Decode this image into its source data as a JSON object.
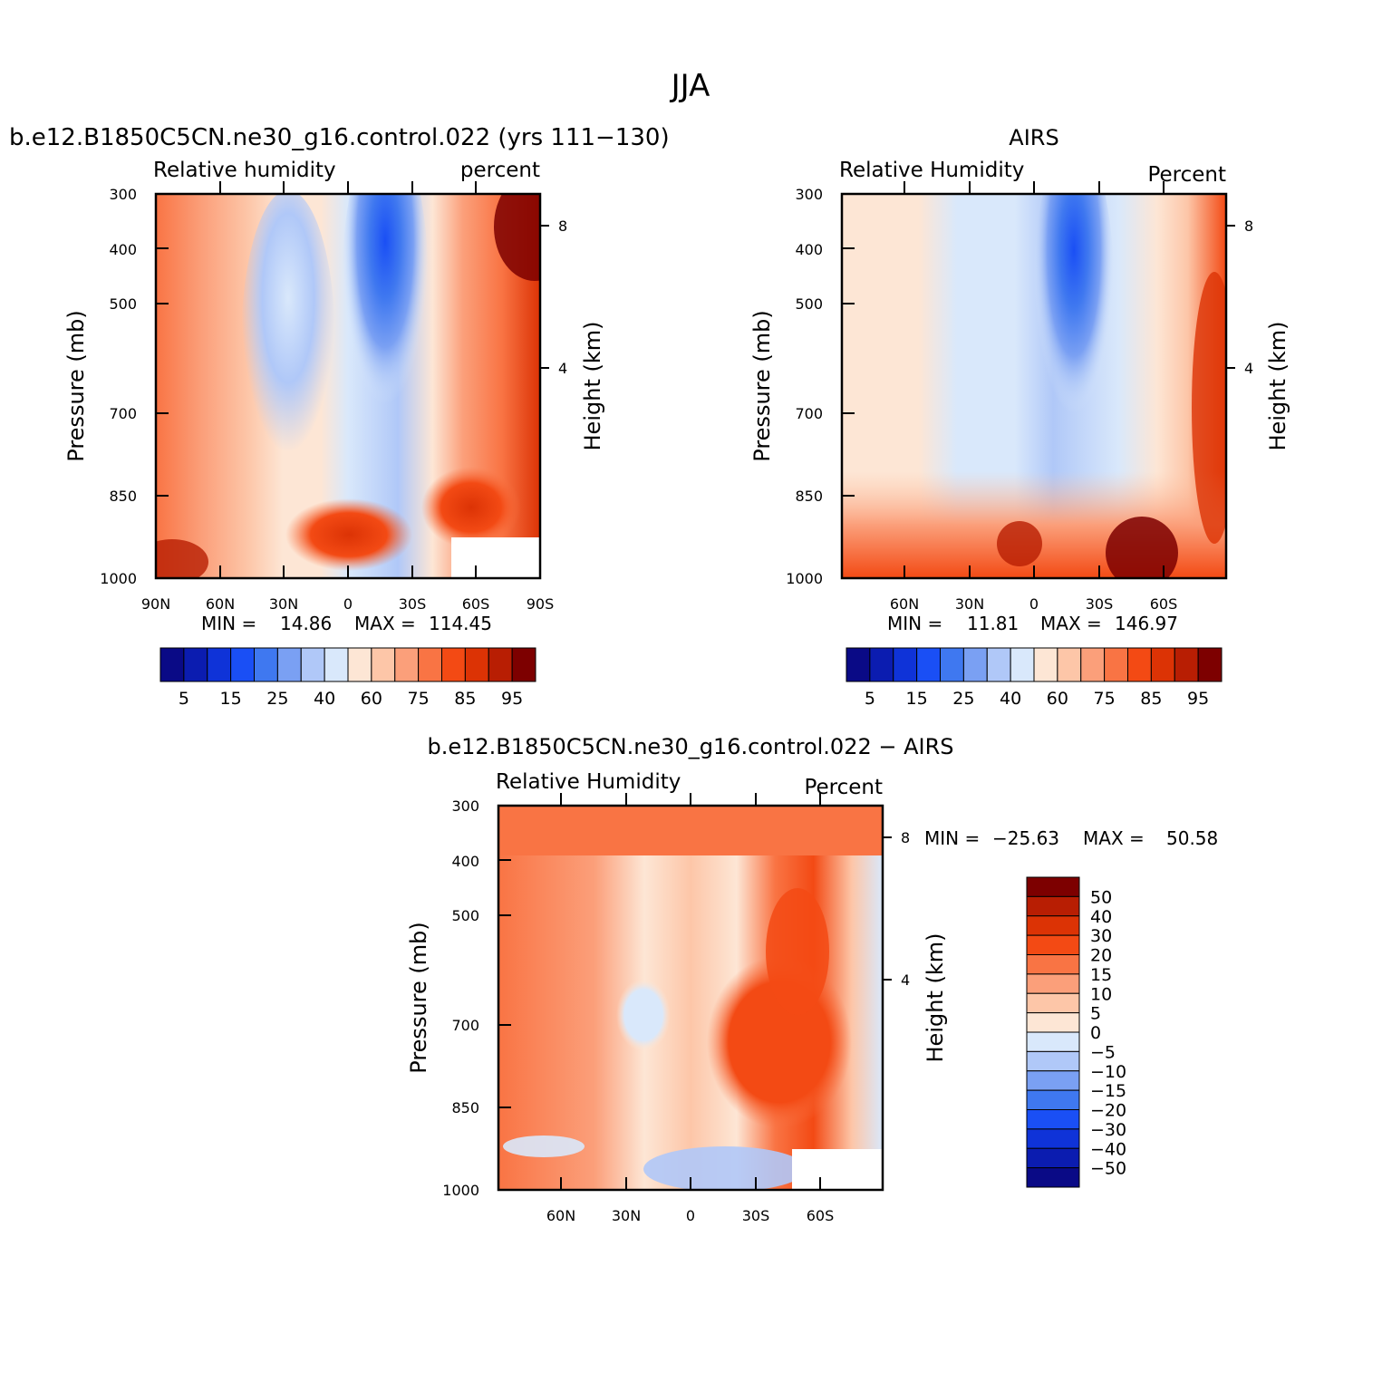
{
  "figure_title": "JJA",
  "chart_data": [
    {
      "type": "heatmap",
      "title": "b.e12.B1850C5CN.ne30_g16.control.022 (yrs 111−130)",
      "left_string": "Relative  humidity",
      "right_string": "percent",
      "ylabel": "Pressure  (mb)",
      "y2label": "Height  (km)",
      "xticks": [
        "90N",
        "60N",
        "30N",
        "0",
        "30S",
        "60S",
        "90S"
      ],
      "xlim": [
        90,
        -90
      ],
      "yticks": [
        "300",
        "400",
        "500",
        "700",
        "850",
        "1000"
      ],
      "ylim": [
        1000,
        300
      ],
      "y_scale": "log",
      "y2ticks": [
        "8",
        "4"
      ],
      "min_label": "MIN =",
      "min_value": "14.86",
      "max_label": "MAX =",
      "max_value": "114.45",
      "colorbar": {
        "orientation": "horizontal",
        "labels": [
          "5",
          "15",
          "25",
          "40",
          "60",
          "75",
          "85",
          "95"
        ],
        "colors": [
          "#0a0a86",
          "#0b1cb0",
          "#0f33d8",
          "#1a4ff5",
          "#3f78f0",
          "#7aa0f3",
          "#b0c8f8",
          "#d9e8fb",
          "#fde6d5",
          "#fdc6a8",
          "#fb9f7a",
          "#f97444",
          "#f34a14",
          "#dc3305",
          "#b81e03",
          "#7d0000"
        ]
      },
      "min_lat_data": 14.86,
      "max_data": 114.45
    },
    {
      "type": "heatmap",
      "title": "AIRS",
      "left_string": "Relative  Humidity",
      "right_string": "Percent",
      "ylabel": "Pressure  (mb)",
      "y2label": "Height  (km)",
      "xticks": [
        "60N",
        "30N",
        "0",
        "30S",
        "60S"
      ],
      "yticks": [
        "300",
        "400",
        "500",
        "700",
        "850",
        "1000"
      ],
      "y2ticks": [
        "8",
        "4"
      ],
      "min_label": "MIN =",
      "min_value": "11.81",
      "max_label": "MAX =",
      "max_value": "146.97",
      "colorbar": {
        "orientation": "horizontal",
        "labels": [
          "5",
          "15",
          "25",
          "40",
          "60",
          "75",
          "85",
          "95"
        ],
        "colors": [
          "#0a0a86",
          "#0b1cb0",
          "#0f33d8",
          "#1a4ff5",
          "#3f78f0",
          "#7aa0f3",
          "#b0c8f8",
          "#d9e8fb",
          "#fde6d5",
          "#fdc6a8",
          "#fb9f7a",
          "#f97444",
          "#f34a14",
          "#dc3305",
          "#b81e03",
          "#7d0000"
        ]
      }
    },
    {
      "type": "heatmap",
      "title": "b.e12.B1850C5CN.ne30_g16.control.022 − AIRS",
      "left_string": "Relative  Humidity",
      "right_string": "Percent",
      "ylabel": "Pressure  (mb)",
      "y2label": "Height  (km)",
      "xticks": [
        "60N",
        "30N",
        "0",
        "30S",
        "60S"
      ],
      "yticks": [
        "300",
        "400",
        "500",
        "700",
        "850",
        "1000"
      ],
      "y2ticks": [
        "8",
        "4"
      ],
      "min_label": "MIN =",
      "min_value": "−25.63",
      "max_label": "MAX =",
      "max_value": "50.58",
      "colorbar": {
        "orientation": "vertical",
        "labels": [
          "50",
          "40",
          "30",
          "20",
          "15",
          "10",
          "5",
          "0",
          "−5",
          "−10",
          "−15",
          "−20",
          "−30",
          "−40",
          "−50"
        ],
        "colors": [
          "#7d0000",
          "#b81e03",
          "#dc3305",
          "#f34a14",
          "#f97444",
          "#fb9f7a",
          "#fdc6a8",
          "#fde6d5",
          "#d9e8fb",
          "#b0c8f8",
          "#7aa0f3",
          "#3f78f0",
          "#1a4ff5",
          "#0f33d8",
          "#0b1cb0",
          "#0a0a86"
        ]
      }
    }
  ]
}
